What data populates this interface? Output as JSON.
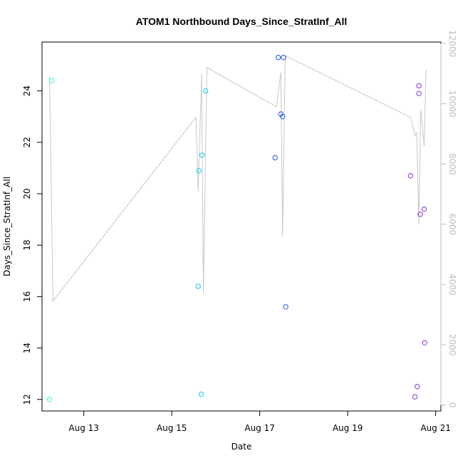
{
  "chart_data": {
    "type": "scatter",
    "title": "ATOM1 Northbound Days_Since_StratInf_All",
    "xlabel": "Date",
    "ylabel": "Days_Since_StratInf_All",
    "x_ticks": [
      "Aug 13",
      "Aug 15",
      "Aug 17",
      "Aug 19",
      "Aug 21"
    ],
    "x_tick_values": [
      13,
      15,
      17,
      19,
      21
    ],
    "xlim": [
      12.05,
      21.12
    ],
    "y_ticks": [
      12,
      14,
      16,
      18,
      20,
      22,
      24
    ],
    "ylim": [
      11.55,
      25.9
    ],
    "y2_ticks": [
      0,
      2000,
      4000,
      6000,
      8000,
      10000,
      12000
    ],
    "y2lim": [
      -200,
      12050
    ],
    "grid": false,
    "colors": {
      "line": "#c8c8c8",
      "right_axis": "#bdbdbd",
      "axis": "#000000"
    },
    "series": [
      {
        "color": "#33ffcc",
        "points": [
          {
            "x": 12.22,
            "y": 12.0
          },
          {
            "x": 12.27,
            "y": 24.4
          }
        ]
      },
      {
        "color": "#11ccee",
        "points": [
          {
            "x": 15.6,
            "y": 16.4
          },
          {
            "x": 15.62,
            "y": 20.9
          },
          {
            "x": 15.67,
            "y": 12.2
          },
          {
            "x": 15.69,
            "y": 21.5
          },
          {
            "x": 15.77,
            "y": 24.0
          }
        ]
      },
      {
        "color": "#2255ee",
        "points": [
          {
            "x": 17.35,
            "y": 21.4
          },
          {
            "x": 17.42,
            "y": 25.3
          },
          {
            "x": 17.48,
            "y": 23.1
          },
          {
            "x": 17.52,
            "y": 23.0
          },
          {
            "x": 17.54,
            "y": 25.3
          },
          {
            "x": 17.59,
            "y": 15.6
          }
        ]
      },
      {
        "color": "#8833ee",
        "points": [
          {
            "x": 20.43,
            "y": 20.7
          },
          {
            "x": 20.53,
            "y": 12.1
          },
          {
            "x": 20.58,
            "y": 12.5
          },
          {
            "x": 20.62,
            "y": 24.2
          },
          {
            "x": 20.62,
            "y": 23.9
          },
          {
            "x": 20.65,
            "y": 19.2
          },
          {
            "x": 20.74,
            "y": 19.4
          },
          {
            "x": 20.75,
            "y": 14.2
          }
        ]
      }
    ],
    "line_series": {
      "axis": "right",
      "points": [
        {
          "x": 12.22,
          "y": 10900
        },
        {
          "x": 12.3,
          "y": 3450
        },
        {
          "x": 15.55,
          "y": 9550
        },
        {
          "x": 15.6,
          "y": 7100
        },
        {
          "x": 15.68,
          "y": 11000
        },
        {
          "x": 15.72,
          "y": 3700
        },
        {
          "x": 15.8,
          "y": 11200
        },
        {
          "x": 17.38,
          "y": 9900
        },
        {
          "x": 17.48,
          "y": 11050
        },
        {
          "x": 17.52,
          "y": 5600
        },
        {
          "x": 17.58,
          "y": 11600
        },
        {
          "x": 20.43,
          "y": 9550
        },
        {
          "x": 20.53,
          "y": 8950
        },
        {
          "x": 20.57,
          "y": 9050
        },
        {
          "x": 20.62,
          "y": 6000
        },
        {
          "x": 20.66,
          "y": 9800
        },
        {
          "x": 20.74,
          "y": 8600
        },
        {
          "x": 20.78,
          "y": 11150
        }
      ]
    }
  }
}
